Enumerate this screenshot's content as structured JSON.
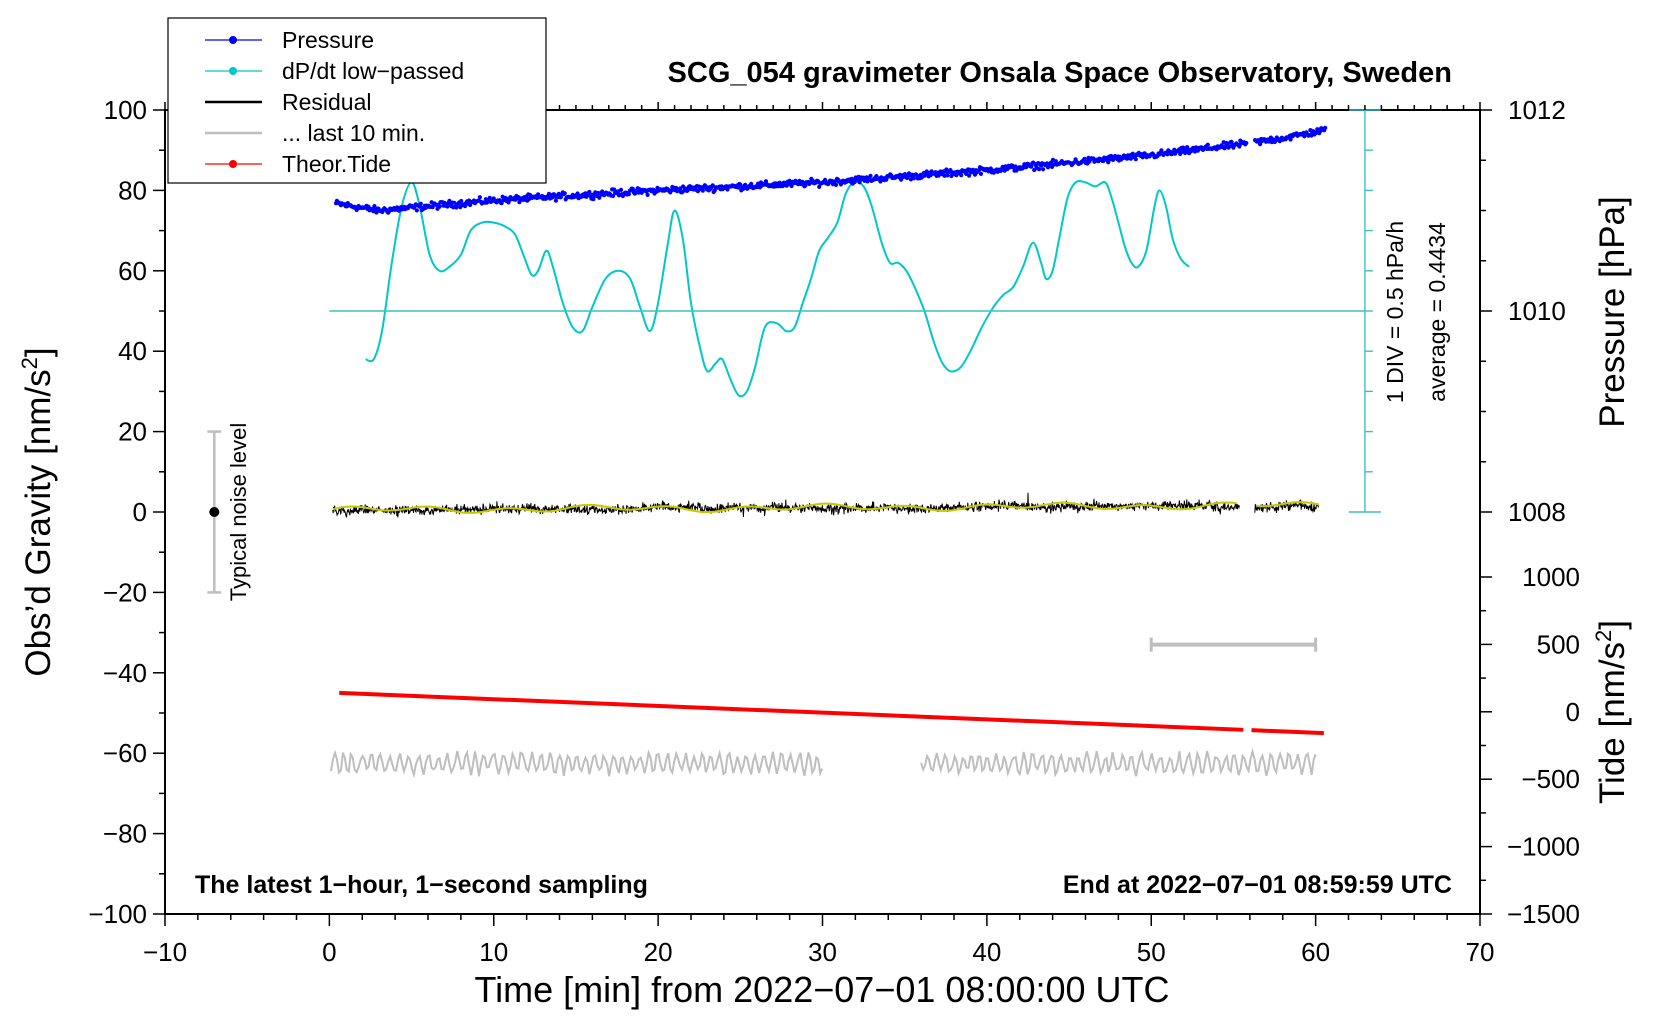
{
  "chart_data": {
    "type": "line",
    "title": "SCG_054 gravimeter Onsala Space Observatory, Sweden",
    "xlabel": "Time [min] from 2022−07−01 08:00:00 UTC",
    "ylabel_left": "Obs’d Gravity [nm/s",
    "ylabel_left_sup": "2",
    "ylabel_left_close": "]",
    "ylabel_right_top": "Pressure [hPa]",
    "ylabel_right_bottom": "Tide [nm/s",
    "ylabel_right_bottom_sup": "2",
    "ylabel_right_bottom_close": "]",
    "xlim": [
      -10,
      70
    ],
    "ylim": [
      -100,
      100
    ],
    "x_ticks": [
      "−10",
      "0",
      "10",
      "20",
      "30",
      "40",
      "50",
      "60",
      "70"
    ],
    "x_tick_values": [
      -10,
      0,
      10,
      20,
      30,
      40,
      50,
      60,
      70
    ],
    "y_ticks": [
      "100",
      "80",
      "60",
      "40",
      "20",
      "0",
      "−20",
      "−40",
      "−60",
      "−80",
      "−100"
    ],
    "y_tick_values": [
      100,
      80,
      60,
      40,
      20,
      0,
      -20,
      -40,
      -60,
      -80,
      -100
    ],
    "pressure_axis": {
      "ticks": [
        "1012",
        "1010",
        "1008"
      ],
      "tick_values": [
        1012,
        1010,
        1008
      ],
      "baseline_y": 50,
      "baseline_value": 1010,
      "units_per_hpa": 25
    },
    "tide_axis": {
      "ticks": [
        "1000",
        "500",
        "0",
        "−500",
        "−1000",
        "−1500"
      ],
      "tick_values": [
        1000,
        500,
        0,
        -500,
        -1000,
        -1500
      ]
    },
    "scale_bar": {
      "label_1": "1 DIV = 0.5 hPa/h",
      "label_2": "average = 0.4434",
      "x": 63,
      "y_top": 100,
      "y_bottom": 0,
      "divisions": 10
    },
    "noise_bar": {
      "label": "Typical noise level",
      "x": -7,
      "y_center": 0,
      "y_low": -20,
      "y_high": 20
    },
    "window_bar": {
      "x_start": 50,
      "x_end": 60,
      "y": -33
    },
    "legend": {
      "position": "top-left",
      "entries": [
        {
          "label": "Pressure",
          "color": "#0000ff",
          "marker": true
        },
        {
          "label": "dP/dt low−passed",
          "color": "#00c8c8",
          "marker": true
        },
        {
          "label": "Residual",
          "color": "#000000",
          "marker": false
        },
        {
          "label": "... last 10 min.",
          "color": "#bebebe",
          "marker": false
        },
        {
          "label": "Theor.Tide",
          "color": "#ff0000",
          "marker": true
        }
      ]
    },
    "annotations": {
      "bottom_left": "The latest 1−hour, 1−second sampling",
      "bottom_right": "End at 2022−07−01 08:59:59 UTC"
    },
    "series": [
      {
        "name": "Pressure",
        "units": "hPa",
        "color": "#0000ff",
        "x_range": [
          0.4,
          60.6
        ],
        "gap": [
          55.8,
          56.3
        ],
        "segments": [
          [
            0.4,
            1011.07
          ],
          [
            3.0,
            1011.0
          ],
          [
            10.0,
            1011.1
          ],
          [
            20.0,
            1011.2
          ],
          [
            30.0,
            1011.28
          ],
          [
            40.0,
            1011.4
          ],
          [
            50.0,
            1011.55
          ],
          [
            55.5,
            1011.66
          ],
          [
            58.0,
            1011.72
          ],
          [
            60.6,
            1011.8
          ]
        ],
        "scatter": 0.05
      },
      {
        "name": "dP/dt low−passed",
        "color": "#00c8c8",
        "points": [
          [
            2.2,
            38
          ],
          [
            2.7,
            38
          ],
          [
            3.2,
            45
          ],
          [
            3.8,
            62
          ],
          [
            4.4,
            76
          ],
          [
            5.0,
            82
          ],
          [
            5.5,
            76
          ],
          [
            6.1,
            64
          ],
          [
            6.7,
            60
          ],
          [
            7.3,
            61
          ],
          [
            8.0,
            64
          ],
          [
            8.6,
            70
          ],
          [
            9.3,
            72
          ],
          [
            10.0,
            72
          ],
          [
            10.7,
            71
          ],
          [
            11.3,
            69
          ],
          [
            11.8,
            64
          ],
          [
            12.3,
            59
          ],
          [
            12.7,
            60
          ],
          [
            13.2,
            65
          ],
          [
            13.6,
            61
          ],
          [
            14.2,
            52
          ],
          [
            14.8,
            46
          ],
          [
            15.4,
            45
          ],
          [
            16.0,
            51
          ],
          [
            16.8,
            58
          ],
          [
            17.6,
            60
          ],
          [
            18.3,
            58
          ],
          [
            18.9,
            51
          ],
          [
            19.5,
            45
          ],
          [
            20.0,
            52
          ],
          [
            20.6,
            67
          ],
          [
            21.0,
            75
          ],
          [
            21.5,
            68
          ],
          [
            22.0,
            52
          ],
          [
            22.6,
            40
          ],
          [
            23.0,
            35
          ],
          [
            23.5,
            37
          ],
          [
            23.9,
            38
          ],
          [
            24.4,
            33
          ],
          [
            24.9,
            29
          ],
          [
            25.4,
            30
          ],
          [
            25.9,
            36
          ],
          [
            26.5,
            46
          ],
          [
            27.2,
            47
          ],
          [
            27.8,
            45
          ],
          [
            28.3,
            46
          ],
          [
            28.8,
            52
          ],
          [
            29.3,
            58
          ],
          [
            29.8,
            65
          ],
          [
            30.3,
            68
          ],
          [
            30.9,
            72
          ],
          [
            31.4,
            79
          ],
          [
            31.9,
            82
          ],
          [
            32.5,
            81
          ],
          [
            33.0,
            76
          ],
          [
            33.6,
            67
          ],
          [
            34.1,
            62
          ],
          [
            34.6,
            62
          ],
          [
            35.1,
            60
          ],
          [
            35.6,
            56
          ],
          [
            36.2,
            50
          ],
          [
            36.8,
            42
          ],
          [
            37.3,
            37
          ],
          [
            37.8,
            35
          ],
          [
            38.4,
            36
          ],
          [
            39.0,
            40
          ],
          [
            39.7,
            46
          ],
          [
            40.4,
            51
          ],
          [
            41.0,
            54
          ],
          [
            41.6,
            56
          ],
          [
            42.2,
            61
          ],
          [
            42.8,
            67
          ],
          [
            43.3,
            62
          ],
          [
            43.6,
            58
          ],
          [
            44.0,
            60
          ],
          [
            44.4,
            68
          ],
          [
            44.9,
            78
          ],
          [
            45.4,
            82
          ],
          [
            46.0,
            82
          ],
          [
            46.6,
            81
          ],
          [
            47.2,
            82
          ],
          [
            47.6,
            78
          ],
          [
            48.0,
            72
          ],
          [
            48.4,
            66
          ],
          [
            48.8,
            62
          ],
          [
            49.2,
            61
          ],
          [
            49.7,
            65
          ],
          [
            50.2,
            76
          ],
          [
            50.5,
            80
          ],
          [
            50.9,
            76
          ],
          [
            51.3,
            68
          ],
          [
            51.8,
            63
          ],
          [
            52.3,
            61
          ]
        ]
      },
      {
        "name": "Residual",
        "color": "#000000",
        "x_range": [
          0.2,
          60.2
        ],
        "gap": [
          55.4,
          56.3
        ],
        "mean": 0.5,
        "amplitude": 2.5
      },
      {
        "name": "Residual (smoothed)",
        "color": "#c8c800",
        "x_range": [
          0.2,
          60.2
        ],
        "gap": [
          55.4,
          56.3
        ],
        "mean": 0.5
      },
      {
        "name": "... last 10 min.",
        "color": "#bebebe",
        "x_ranges": [
          [
            0.1,
            30.0
          ],
          [
            36.0,
            60.0
          ]
        ],
        "mean": -62.5,
        "amplitude": 2.5
      },
      {
        "name": "Theor.Tide",
        "color": "#ff0000",
        "x_range": [
          0.6,
          60.5
        ],
        "gap": [
          55.6,
          56.1
        ],
        "y_start": -45,
        "y_end": -55
      }
    ]
  }
}
